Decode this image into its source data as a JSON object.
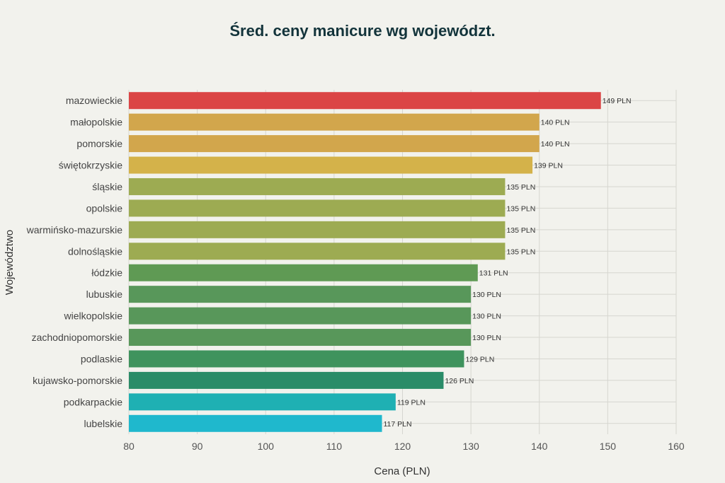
{
  "chart_data": {
    "type": "bar",
    "orientation": "horizontal",
    "title": "Śred. ceny manicure wg województ.",
    "xlabel": "Cena (PLN)",
    "ylabel": "Województwo",
    "xlim": [
      80,
      160
    ],
    "xticks": [
      80,
      90,
      100,
      110,
      120,
      130,
      140,
      150,
      160
    ],
    "grid": true,
    "value_suffix": " PLN",
    "categories": [
      "mazowieckie",
      "małopolskie",
      "pomorskie",
      "świętokrzyskie",
      "śląskie",
      "opolskie",
      "warmińsko-mazurskie",
      "dolnośląskie",
      "łódzkie",
      "lubuskie",
      "wielkopolskie",
      "zachodniopomorskie",
      "podlaskie",
      "kujawsko-pomorskie",
      "podkarpackie",
      "lubelskie"
    ],
    "values": [
      149,
      140,
      140,
      139,
      135,
      135,
      135,
      135,
      131,
      130,
      130,
      130,
      129,
      126,
      119,
      117
    ],
    "colors": [
      "#db4545",
      "#d2a64c",
      "#d2a64c",
      "#d4b24a",
      "#9dab52",
      "#9dab52",
      "#9dab52",
      "#9dab52",
      "#5f9a54",
      "#58975a",
      "#58975a",
      "#58975a",
      "#3f935d",
      "#2a8c68",
      "#1fb0b3",
      "#1fb8cd"
    ]
  }
}
